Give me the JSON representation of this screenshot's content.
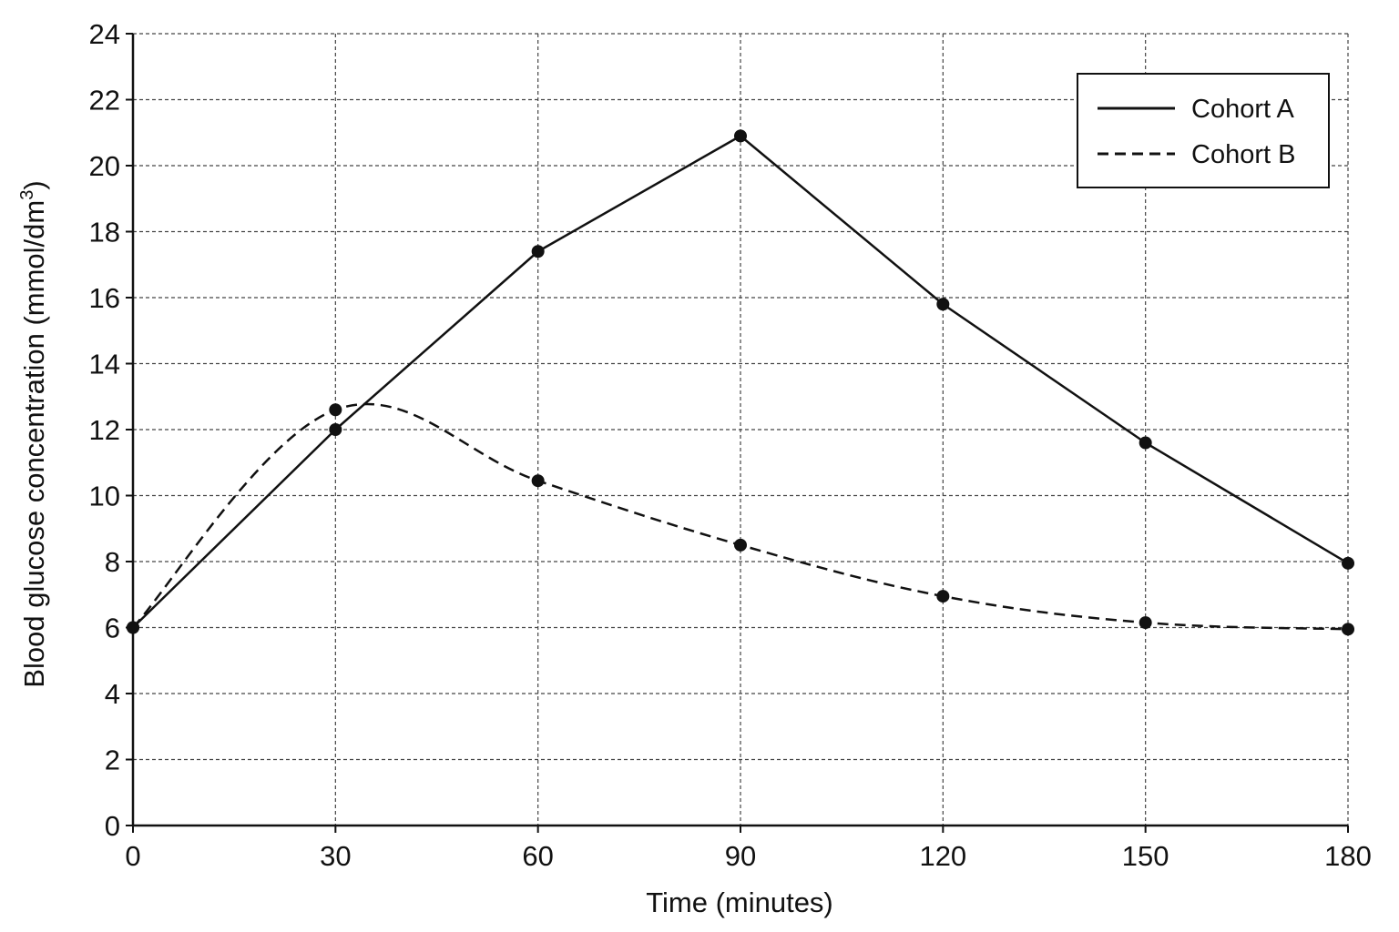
{
  "chart_data": {
    "type": "line",
    "xlabel": "Time (minutes)",
    "ylabel": {
      "text": "Blood glucose concentration (mmol/dm",
      "superscript": "3",
      "suffix": ")"
    },
    "x": [
      0,
      30,
      60,
      90,
      120,
      150,
      180
    ],
    "xlim": [
      0,
      180
    ],
    "ylim": [
      0,
      24
    ],
    "xticks": [
      "0",
      "30",
      "60",
      "90",
      "120",
      "150",
      "180"
    ],
    "yticks": [
      "0",
      "2",
      "4",
      "6",
      "8",
      "10",
      "12",
      "14",
      "16",
      "18",
      "20",
      "22",
      "24"
    ],
    "grid": true,
    "grid_style": "dashed",
    "legend_position": "top-right",
    "series": [
      {
        "name": "Cohort A",
        "line_style": "solid",
        "values": [
          6.0,
          12.0,
          17.4,
          20.9,
          15.8,
          11.6,
          7.95
        ]
      },
      {
        "name": "Cohort B",
        "line_style": "dashed",
        "values": [
          6.0,
          12.6,
          10.45,
          8.5,
          6.95,
          6.15,
          5.95
        ]
      }
    ],
    "colors": {
      "line": "#111111",
      "grid": "#444444",
      "background": "#ffffff"
    }
  }
}
